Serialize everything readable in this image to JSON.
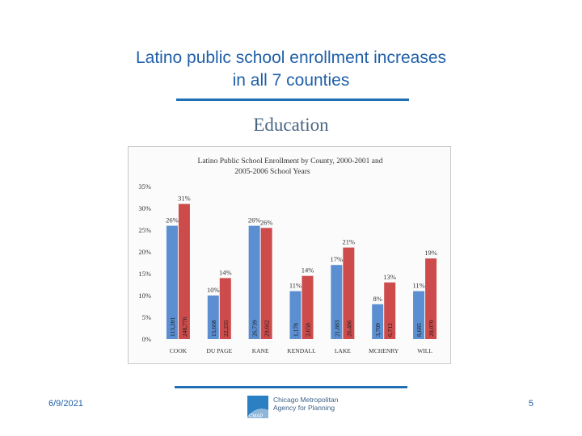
{
  "slide": {
    "title_line1": "Latino public school enrollment increases",
    "title_line2": "in all 7 counties",
    "section_heading": "Education",
    "date": "6/9/2021",
    "page_number": "5",
    "logo": {
      "line1": "Chicago Metropolitan",
      "line2": "Agency for Planning",
      "abbrev": "CMAP"
    }
  },
  "colors": {
    "title": "#1f5fa8",
    "series_2000": "#5b8fd1",
    "series_2005": "#cd4b4b",
    "rule": "#1f6fb5"
  },
  "chart_data": {
    "type": "bar",
    "title_line1": "Latino Public School Enrollment by County, 2000-2001 and",
    "title_line2": "2005-2006 School Years",
    "categories": [
      "COOK",
      "DU PAGE",
      "KANE",
      "KENDALL",
      "LAKE",
      "MCHENRY",
      "WILL"
    ],
    "ylim": [
      0,
      35
    ],
    "yticks": [
      0,
      5,
      10,
      15,
      20,
      25,
      30,
      35
    ],
    "ytick_labels": [
      "0%",
      "5%",
      "10%",
      "15%",
      "20%",
      "25%",
      "30%",
      "35%"
    ],
    "grid": false,
    "series": [
      {
        "name": "2000-2001",
        "values": [
          26,
          10,
          26,
          11,
          17,
          8,
          11
        ],
        "data_labels": [
          "26%",
          "10%",
          "26%",
          "11%",
          "17%",
          "8%",
          "11%"
        ],
        "count_labels": [
          "113,201",
          "15,668",
          "26,739",
          "1,178",
          "21,883",
          "3,709",
          "8,685"
        ]
      },
      {
        "name": "2005-2006",
        "values": [
          31,
          14,
          25.5,
          14.5,
          21,
          13,
          18.5
        ],
        "data_labels": [
          "31%",
          "14%",
          "26%",
          "14%",
          "21%",
          "13%",
          "19%"
        ],
        "count_labels": [
          "248,776",
          "22,235",
          "29,662",
          "2,650",
          "26,486",
          "6,712",
          "20,070"
        ]
      }
    ]
  }
}
